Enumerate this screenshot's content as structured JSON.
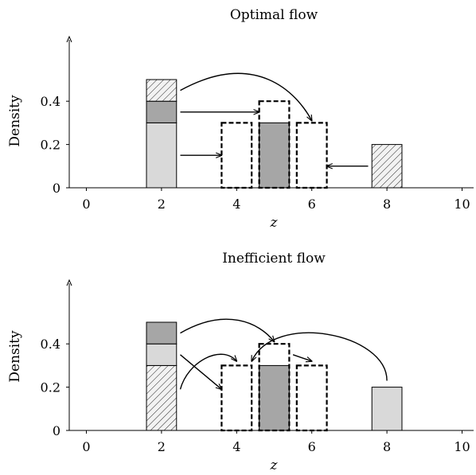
{
  "chart_data": [
    {
      "type": "bar",
      "title": "Optimal flow",
      "xlabel": "z",
      "ylabel": "Density",
      "xlim": [
        -0.5,
        10.4
      ],
      "ylim": [
        0,
        0.5
      ],
      "xticks": [
        "0",
        "2",
        "4",
        "6",
        "8",
        "10"
      ],
      "yticks": [
        "0",
        "0.2",
        "0.4"
      ],
      "bar_width": 0.8,
      "colors": {
        "light": "#d9d9d9",
        "dark": "#a6a6a6",
        "hatched": "#f2f2f2",
        "stroke": "#000000"
      },
      "bars": [
        {
          "x": 2,
          "y0": 0.0,
          "y1": 0.3,
          "fill": "light"
        },
        {
          "x": 2,
          "y0": 0.3,
          "y1": 0.4,
          "fill": "dark"
        },
        {
          "x": 2,
          "y0": 0.4,
          "y1": 0.5,
          "fill": "hatched"
        },
        {
          "x": 5,
          "y0": 0.0,
          "y1": 0.3,
          "fill": "dark"
        },
        {
          "x": 8,
          "y0": 0.0,
          "y1": 0.2,
          "fill": "hatched"
        }
      ],
      "targets": [
        {
          "x": 4,
          "y0": 0.0,
          "y1": 0.3
        },
        {
          "x": 5,
          "y0": 0.0,
          "y1": 0.4
        },
        {
          "x": 6,
          "y0": 0.0,
          "y1": 0.3
        }
      ],
      "arrows": [
        {
          "kind": "straight",
          "from": [
            2.5,
            0.15
          ],
          "to": [
            3.6,
            0.15
          ]
        },
        {
          "kind": "straight",
          "from": [
            2.5,
            0.35
          ],
          "to": [
            4.6,
            0.35
          ]
        },
        {
          "kind": "curved",
          "from": [
            2.5,
            0.45
          ],
          "to": [
            6.0,
            0.31
          ],
          "ctrl": [
            [
              4.5,
              0.64
            ],
            [
              5.6,
              0.44
            ]
          ]
        },
        {
          "kind": "straight",
          "from": [
            7.5,
            0.1
          ],
          "to": [
            6.4,
            0.1
          ]
        }
      ]
    },
    {
      "type": "bar",
      "title": "Inefficient flow",
      "xlabel": "z",
      "ylabel": "Density",
      "xlim": [
        -0.5,
        10.4
      ],
      "ylim": [
        0,
        0.5
      ],
      "xticks": [
        "0",
        "2",
        "4",
        "6",
        "8",
        "10"
      ],
      "yticks": [
        "0",
        "0.2",
        "0.4"
      ],
      "bar_width": 0.8,
      "colors": {
        "light": "#d9d9d9",
        "dark": "#a6a6a6",
        "hatched": "#f2f2f2",
        "stroke": "#000000"
      },
      "bars": [
        {
          "x": 2,
          "y0": 0.0,
          "y1": 0.3,
          "fill": "hatched"
        },
        {
          "x": 2,
          "y0": 0.3,
          "y1": 0.4,
          "fill": "light"
        },
        {
          "x": 2,
          "y0": 0.4,
          "y1": 0.5,
          "fill": "dark"
        },
        {
          "x": 5,
          "y0": 0.0,
          "y1": 0.3,
          "fill": "dark"
        },
        {
          "x": 8,
          "y0": 0.0,
          "y1": 0.2,
          "fill": "light"
        }
      ],
      "targets": [
        {
          "x": 4,
          "y0": 0.0,
          "y1": 0.3
        },
        {
          "x": 5,
          "y0": 0.0,
          "y1": 0.4
        },
        {
          "x": 6,
          "y0": 0.0,
          "y1": 0.3
        }
      ],
      "arrows": [
        {
          "kind": "straight",
          "from": [
            2.5,
            0.35
          ],
          "to": [
            3.6,
            0.19
          ]
        },
        {
          "kind": "curved",
          "from": [
            2.5,
            0.45
          ],
          "to": [
            5.0,
            0.41
          ],
          "ctrl": [
            [
              3.7,
              0.57
            ],
            [
              4.6,
              0.5
            ]
          ]
        },
        {
          "kind": "curved",
          "from": [
            2.5,
            0.19
          ],
          "to": [
            4.0,
            0.32
          ],
          "ctrl": [
            [
              2.7,
              0.32
            ],
            [
              3.6,
              0.4
            ]
          ]
        },
        {
          "kind": "curved",
          "from": [
            8.0,
            0.23
          ],
          "to": [
            4.4,
            0.32
          ],
          "ctrl": [
            [
              8.0,
              0.45
            ],
            [
              5.0,
              0.55
            ]
          ]
        },
        {
          "kind": "straight",
          "from": [
            5.5,
            0.35
          ],
          "to": [
            6.0,
            0.32
          ]
        }
      ]
    }
  ]
}
